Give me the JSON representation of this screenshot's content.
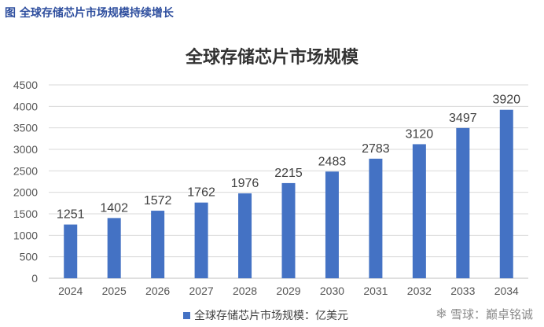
{
  "figure_caption": "图  全球存储芯片市场规模持续增长",
  "watermark": {
    "icon": "snowball-icon",
    "text": "雪球：巅卓铭诚"
  },
  "chart_data": {
    "type": "bar",
    "title": "全球存储芯片市场规模",
    "categories": [
      "2024",
      "2025",
      "2026",
      "2027",
      "2028",
      "2029",
      "2030",
      "2031",
      "2032",
      "2033",
      "2034"
    ],
    "series": [
      {
        "name": "全球存储芯片市场规模：亿美元",
        "values": [
          1251,
          1402,
          1572,
          1762,
          1976,
          2215,
          2483,
          2783,
          3120,
          3497,
          3920
        ],
        "color": "#4472c4"
      }
    ],
    "ylim": [
      0,
      4500
    ],
    "yticks": [
      0,
      500,
      1000,
      1500,
      2000,
      2500,
      3000,
      3500,
      4000,
      4500
    ],
    "grid": true,
    "legend_position": "bottom"
  }
}
